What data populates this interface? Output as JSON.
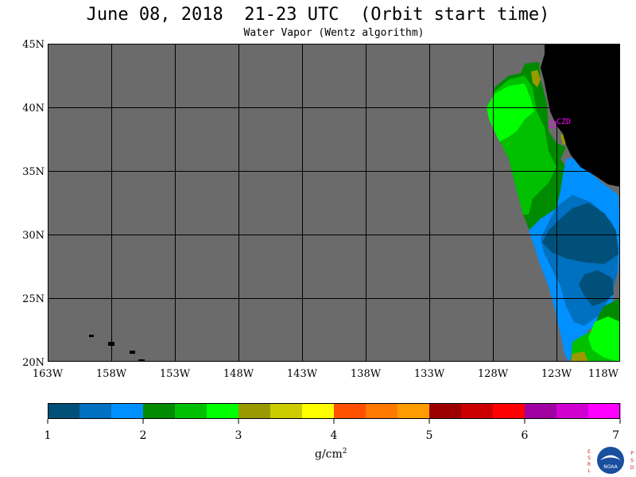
{
  "title": "June 08, 2018  21-23 UTC  (Orbit start time)",
  "subtitle": "Water Vapor (Wentz algorithm)",
  "map": {
    "lat_range": [
      20,
      45
    ],
    "lon_range": [
      -163,
      -118
    ],
    "lat_ticks": [
      "45N",
      "40N",
      "35N",
      "30N",
      "25N",
      "20N"
    ],
    "lon_ticks": [
      "163W",
      "158W",
      "153W",
      "148W",
      "143W",
      "138W",
      "133W",
      "128W",
      "123W",
      "118W"
    ],
    "station_label": "CZD",
    "colors": {
      "no_data": "#6b6b6b",
      "land": "#000000",
      "grid": "#000000",
      "station": "#ff00ff"
    }
  },
  "colorbar": {
    "tick_labels": [
      "1",
      "2",
      "3",
      "4",
      "5",
      "6",
      "7"
    ],
    "colors": [
      "#00507a",
      "#0070c0",
      "#0090ff",
      "#008a00",
      "#00c000",
      "#00ff00",
      "#9a9a00",
      "#cccc00",
      "#ffff00",
      "#ff5000",
      "#ff7800",
      "#ff9c00",
      "#9c0000",
      "#cc0000",
      "#ff0000",
      "#a000a0",
      "#d000d0",
      "#ff00ff"
    ],
    "units_base": "g/cm",
    "units_sup": "2"
  },
  "logo": {
    "left_letters": "ESRL",
    "right_letters": "PSD",
    "center_text": "NOAA"
  }
}
